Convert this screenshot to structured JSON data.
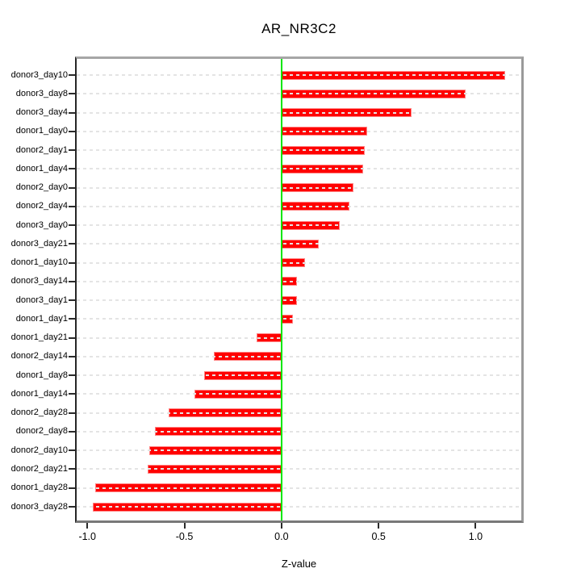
{
  "chart_data": {
    "type": "bar",
    "orientation": "horizontal",
    "title": "AR_NR3C2",
    "xlabel": "Z-value",
    "ylabel": "",
    "categories": [
      "donor3_day10",
      "donor3_day8",
      "donor3_day4",
      "donor1_day0",
      "donor2_day1",
      "donor1_day4",
      "donor2_day0",
      "donor2_day4",
      "donor3_day0",
      "donor3_day21",
      "donor1_day10",
      "donor3_day14",
      "donor3_day1",
      "donor1_day1",
      "donor1_day21",
      "donor2_day14",
      "donor1_day8",
      "donor1_day14",
      "donor2_day28",
      "donor2_day8",
      "donor2_day10",
      "donor2_day21",
      "donor1_day28",
      "donor3_day28"
    ],
    "values": [
      1.15,
      0.95,
      0.67,
      0.44,
      0.43,
      0.42,
      0.37,
      0.35,
      0.3,
      0.19,
      0.12,
      0.08,
      0.08,
      0.06,
      -0.13,
      -0.35,
      -0.4,
      -0.45,
      -0.58,
      -0.65,
      -0.68,
      -0.69,
      -0.96,
      -0.97
    ],
    "x_ticks": [
      -1.0,
      -0.5,
      0.0,
      0.5,
      1.0
    ],
    "x_tick_labels": [
      "-1.0",
      "-0.5",
      "0.0",
      "0.5",
      "1.0"
    ],
    "xlim": [
      -1.055,
      1.235
    ],
    "bar_color": "#ff0000",
    "zero_line_color": "#00e600",
    "gridline_color": "#e4e4e4",
    "grid": true,
    "legend_position": "none"
  }
}
